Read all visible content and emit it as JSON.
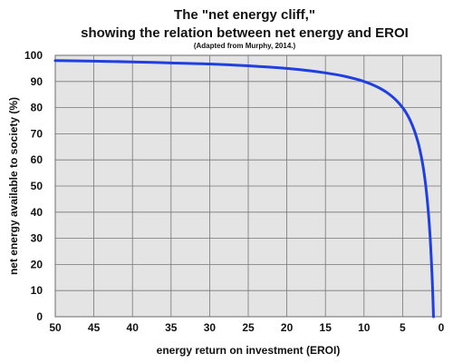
{
  "chart_data": {
    "type": "line",
    "title": "The \"net energy cliff,\"",
    "subtitle": "showing the relation between net energy and EROI",
    "note": "(Adapted from Murphy, 2014.)",
    "xlabel": "energy return on investment (EROI)",
    "ylabel": "net energy available to society (%)",
    "xlim": [
      50,
      0
    ],
    "ylim": [
      0,
      100
    ],
    "x_reversed": true,
    "grid": true,
    "xticks": [
      50,
      45,
      40,
      35,
      30,
      25,
      20,
      15,
      10,
      5,
      0
    ],
    "yticks": [
      0,
      10,
      20,
      30,
      40,
      50,
      60,
      70,
      80,
      90,
      100
    ],
    "series": [
      {
        "color": "#1f3fe0",
        "x": [
          50,
          45,
          40,
          35,
          30,
          25,
          20,
          17,
          15,
          13,
          11,
          10,
          9,
          8,
          7,
          6,
          5,
          4.5,
          4,
          3.5,
          3,
          2.75,
          2.5,
          2.25,
          2,
          1.8,
          1.6,
          1.4,
          1.2,
          1.1,
          1
        ],
        "y": [
          98,
          97.8,
          97.5,
          97.1,
          96.7,
          96,
          95,
          94.1,
          93.3,
          92.3,
          90.9,
          90,
          88.9,
          87.5,
          85.7,
          83.3,
          80,
          77.8,
          75,
          71.4,
          66.7,
          63.6,
          60,
          55.6,
          50,
          44.4,
          37.5,
          28.6,
          16.7,
          9.1,
          0
        ]
      }
    ],
    "colors": {
      "plot_background": "#e4e4e4",
      "gridline": "#777777",
      "line": "#1f3fe0"
    }
  }
}
